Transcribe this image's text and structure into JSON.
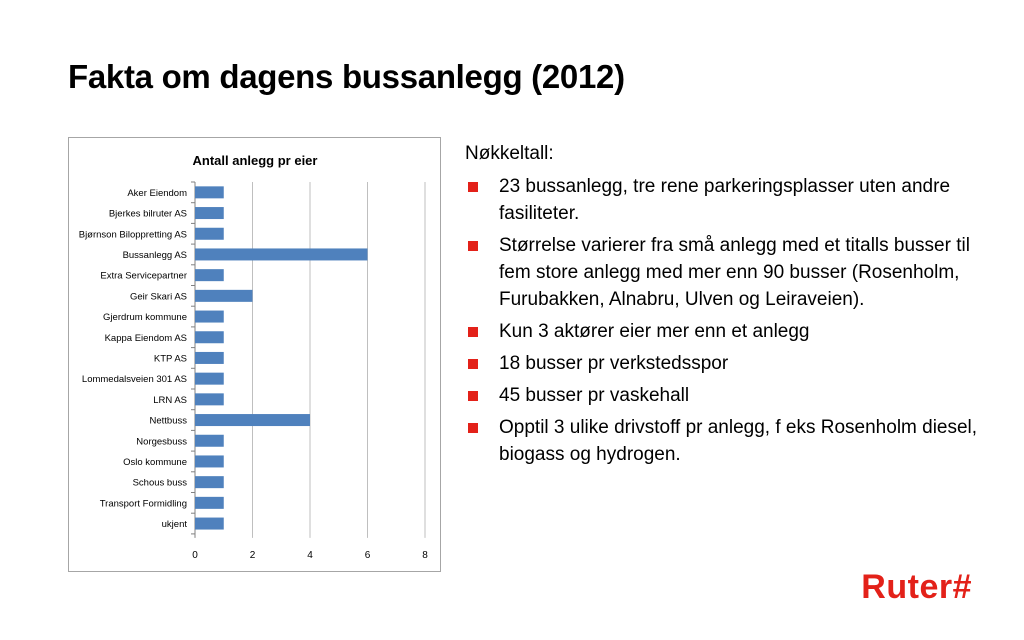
{
  "slide": {
    "title": "Fakta om dagens bussanlegg (2012)",
    "accent_color": "#e32119"
  },
  "chart_data": {
    "type": "bar",
    "orientation": "horizontal",
    "title": "Antall anlegg pr eier",
    "categories": [
      "Aker Eiendom",
      "Bjerkes bilruter AS",
      "Bjørnson Biloppretting AS",
      "Bussanlegg AS",
      "Extra Servicepartner",
      "Geir Skari AS",
      "Gjerdrum kommune",
      "Kappa Eiendom AS",
      "KTP AS",
      "Lommedalsveien 301 AS",
      "LRN AS",
      "Nettbuss",
      "Norgesbuss",
      "Oslo kommune",
      "Schous buss",
      "Transport Formidling",
      "ukjent"
    ],
    "values": [
      1,
      1,
      1,
      6,
      1,
      2,
      1,
      1,
      1,
      1,
      1,
      4,
      1,
      1,
      1,
      1,
      1
    ],
    "xlim": [
      0,
      8
    ],
    "xticks": [
      "0",
      "2",
      "4",
      "6",
      "8"
    ],
    "bar_color": "#4f81bd",
    "grid": "vertical gridlines",
    "legend": "none"
  },
  "bullets": {
    "heading": "Nøkkeltall:",
    "items": [
      "23 bussanlegg, tre rene parkeringsplasser uten andre fasiliteter.",
      "Størrelse varierer fra små anlegg med et titalls busser til fem store anlegg med mer enn 90 busser (Rosenholm, Furubakken, Alnabru, Ulven og Leiraveien).",
      "Kun 3 aktører eier mer enn et anlegg",
      "18 busser pr verkstedsspor",
      "45 busser pr vaskehall",
      "Opptil 3 ulike drivstoff pr anlegg, f eks Rosenholm diesel, biogass og hydrogen."
    ],
    "bullet_icon": "red-square-icon"
  },
  "logo": {
    "text": "Ruter#",
    "color": "#e32119"
  }
}
